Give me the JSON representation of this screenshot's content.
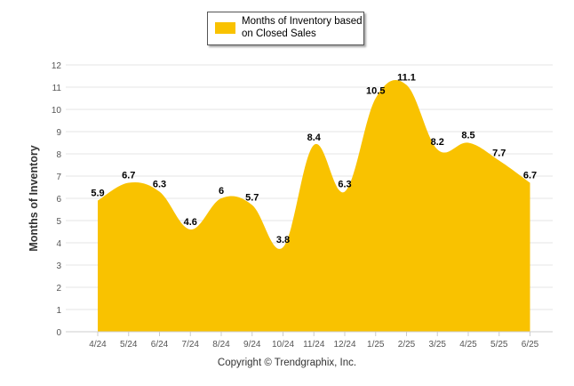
{
  "chart_data": {
    "type": "area",
    "categories": [
      "4/24",
      "5/24",
      "6/24",
      "7/24",
      "8/24",
      "9/24",
      "10/24",
      "11/24",
      "12/24",
      "1/25",
      "2/25",
      "3/25",
      "4/25",
      "5/25",
      "6/25"
    ],
    "series": [
      {
        "name": "Months of Inventory based on Closed Sales",
        "values": [
          5.9,
          6.7,
          6.3,
          4.6,
          6,
          5.7,
          3.8,
          8.4,
          6.3,
          10.5,
          11.1,
          8.2,
          8.5,
          7.7,
          6.7
        ],
        "labels": [
          "5.9",
          "6.7",
          "6.3",
          "4.6",
          "6",
          "5.7",
          "3.8",
          "8.4",
          "6.3",
          "10.5",
          "11.1",
          "8.2",
          "8.5",
          "7.7",
          "6.7"
        ],
        "color": "#F9C200"
      }
    ],
    "ylabel": "Months of Inventory",
    "xlabel": "",
    "ylim": [
      0,
      12
    ],
    "yticks": [
      "0",
      "1",
      "2",
      "3",
      "4",
      "5",
      "6",
      "7",
      "8",
      "9",
      "10",
      "11",
      "12"
    ],
    "grid": true,
    "legend_placement": "top-center"
  },
  "footer": {
    "copyright": "Copyright © Trendgraphix, Inc."
  }
}
